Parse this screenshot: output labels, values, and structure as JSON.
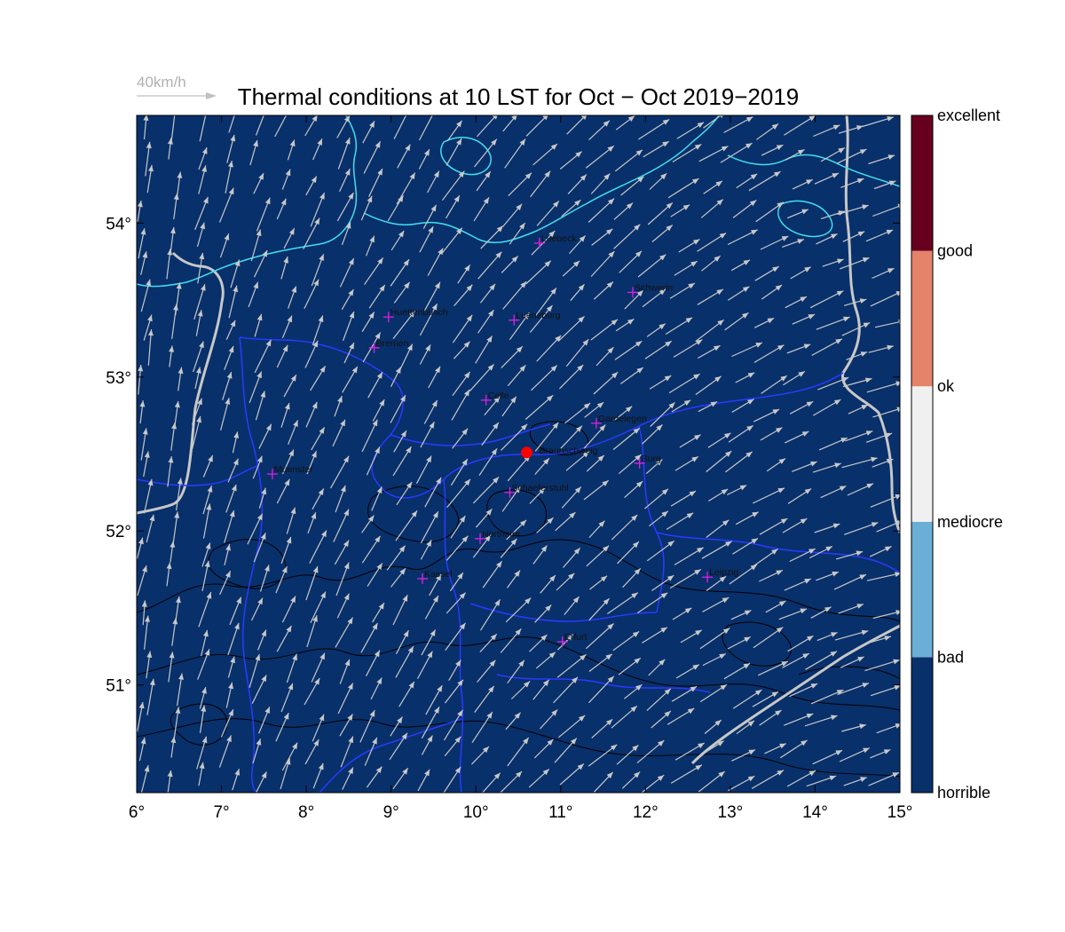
{
  "title": "Thermal conditions at 10 LST for Oct − Oct  2019−2019",
  "reference_vector": {
    "label": "40km/h"
  },
  "map": {
    "lon_range": [
      6,
      15
    ],
    "lat_range": [
      50.3,
      54.7
    ],
    "x_ticks": [
      {
        "value": 6,
        "label": "6°"
      },
      {
        "value": 7,
        "label": "7°"
      },
      {
        "value": 8,
        "label": "8°"
      },
      {
        "value": 9,
        "label": "9°"
      },
      {
        "value": 10,
        "label": "10°"
      },
      {
        "value": 11,
        "label": "11°"
      },
      {
        "value": 12,
        "label": "12°"
      },
      {
        "value": 13,
        "label": "13°"
      },
      {
        "value": 14,
        "label": "14°"
      },
      {
        "value": 15,
        "label": "15°"
      }
    ],
    "y_ticks": [
      {
        "value": 51,
        "label": "51°"
      },
      {
        "value": 52,
        "label": "52°"
      },
      {
        "value": 53,
        "label": "53°"
      },
      {
        "value": 54,
        "label": "54°"
      }
    ],
    "background_color": "#08306b",
    "coast_color": "#40e0f0",
    "border_color": "#2a3aff",
    "river_color": "#c8c8c8",
    "contour_color": "#000000",
    "wind_color": "#c8c8c8",
    "wind_direction": "from south-west",
    "cities": [
      {
        "name": "Luebeck",
        "lon": 10.75,
        "lat": 53.87
      },
      {
        "name": "Schwerin",
        "lon": 11.85,
        "lat": 53.55
      },
      {
        "name": "Huettenbusch",
        "lon": 8.97,
        "lat": 53.39
      },
      {
        "name": "Lueneburg",
        "lon": 10.45,
        "lat": 53.37
      },
      {
        "name": "Bremen",
        "lon": 8.8,
        "lat": 53.19
      },
      {
        "name": "Celle",
        "lon": 10.12,
        "lat": 52.85
      },
      {
        "name": "Gardelegen",
        "lon": 11.42,
        "lat": 52.7
      },
      {
        "name": "Burg",
        "lon": 11.93,
        "lat": 52.44
      },
      {
        "name": "Muenster",
        "lon": 7.6,
        "lat": 52.37
      },
      {
        "name": "Schaeferstuhl",
        "lon": 10.4,
        "lat": 52.25
      },
      {
        "name": "Northeim",
        "lon": 10.05,
        "lat": 51.95
      },
      {
        "name": "Kassel",
        "lon": 9.37,
        "lat": 51.69
      },
      {
        "name": "Leipzig",
        "lon": 12.73,
        "lat": 51.7
      },
      {
        "name": "Erfurt",
        "lon": 11.02,
        "lat": 51.28
      }
    ],
    "highlight": {
      "name": "Braunschweig",
      "lon": 10.6,
      "lat": 52.51,
      "color": "#ff0000"
    }
  },
  "colorbar": {
    "levels": [
      {
        "label": "horrible",
        "color": "#08306b"
      },
      {
        "label": "bad",
        "color": "#6baed6"
      },
      {
        "label": "mediocre",
        "color": "#f0f0f0"
      },
      {
        "label": "ok",
        "color": "#e5826a"
      },
      {
        "label": "good",
        "color": "#67001f"
      },
      {
        "label": "excellent",
        "color": ""
      }
    ]
  }
}
